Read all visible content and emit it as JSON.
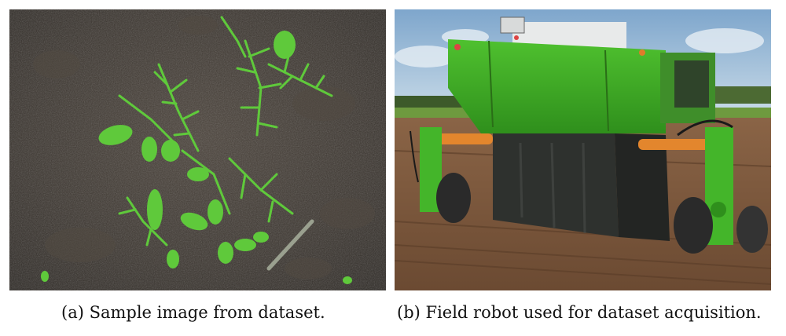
{
  "figure": {
    "panels": [
      {
        "id": "a",
        "caption": "(a) Sample image from dataset.",
        "image_subject": "green-weed-seedlings-on-dark-soil"
      },
      {
        "id": "b",
        "caption": "(b) Field robot used for dataset acquisition.",
        "image_subject": "green-field-robot-on-farm-field"
      }
    ]
  }
}
